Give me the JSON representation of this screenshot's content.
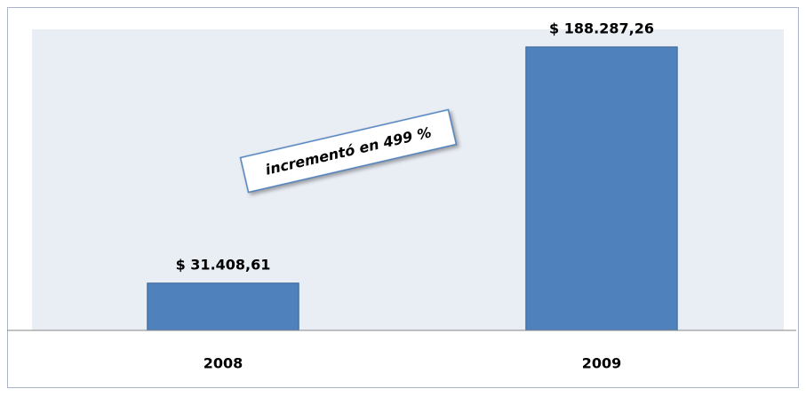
{
  "chart_data": {
    "type": "bar",
    "categories": [
      "2008",
      "2009"
    ],
    "values": [
      31408.61,
      188287.26
    ],
    "value_labels": [
      "$ 31.408,61",
      "$ 188.287,26"
    ],
    "color": "#4f81bd",
    "ylim": [
      0,
      200000
    ],
    "annotation": "incrementó en 499 %"
  }
}
